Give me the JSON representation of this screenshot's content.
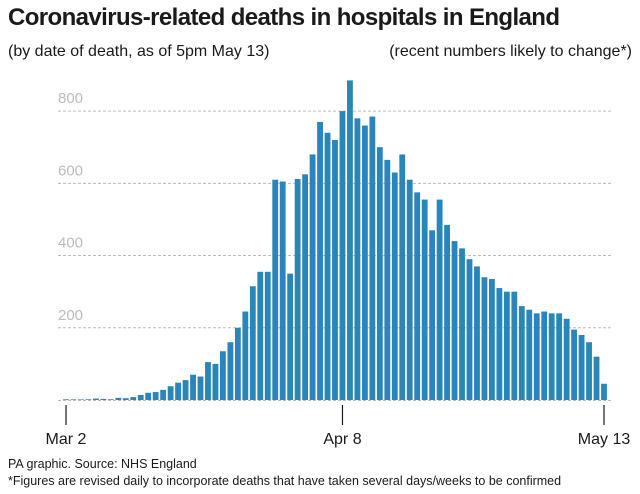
{
  "header": {
    "title": "Coronavirus-related deaths in hospitals in England",
    "subtitle_left": "(by date of death, as of 5pm May 13)",
    "subtitle_right": "(recent numbers likely to change*)"
  },
  "footer": {
    "source": "PA graphic. Source: NHS England",
    "note": "*Figures are revised daily to incorporate deaths that have taken several days/weeks to be confirmed"
  },
  "colors": {
    "bar": "#2a86b8",
    "gridline": "#bcbcbc",
    "tick_label": "#bcbcbc",
    "axis": "#1a1a1a"
  },
  "chart_data": {
    "type": "bar",
    "title": "Coronavirus-related deaths in hospitals in England",
    "xlabel": "",
    "ylabel": "",
    "ylim": [
      0,
      900
    ],
    "yticks": [
      200,
      400,
      600,
      800
    ],
    "grid": true,
    "x_tick_labels": [
      {
        "label": "Mar 2",
        "index": 0
      },
      {
        "label": "Apr 8",
        "index": 37
      },
      {
        "label": "May 13",
        "index": 72
      }
    ],
    "values": [
      2,
      1,
      0,
      2,
      4,
      3,
      2,
      6,
      5,
      8,
      14,
      20,
      22,
      28,
      38,
      48,
      55,
      70,
      65,
      105,
      100,
      135,
      160,
      200,
      245,
      315,
      355,
      355,
      610,
      605,
      350,
      612,
      625,
      680,
      770,
      740,
      720,
      800,
      885,
      780,
      760,
      785,
      700,
      665,
      630,
      680,
      610,
      575,
      555,
      470,
      555,
      485,
      440,
      420,
      390,
      370,
      340,
      335,
      310,
      300,
      300,
      260,
      250,
      240,
      245,
      240,
      240,
      225,
      195,
      180,
      160,
      120,
      45
    ]
  }
}
